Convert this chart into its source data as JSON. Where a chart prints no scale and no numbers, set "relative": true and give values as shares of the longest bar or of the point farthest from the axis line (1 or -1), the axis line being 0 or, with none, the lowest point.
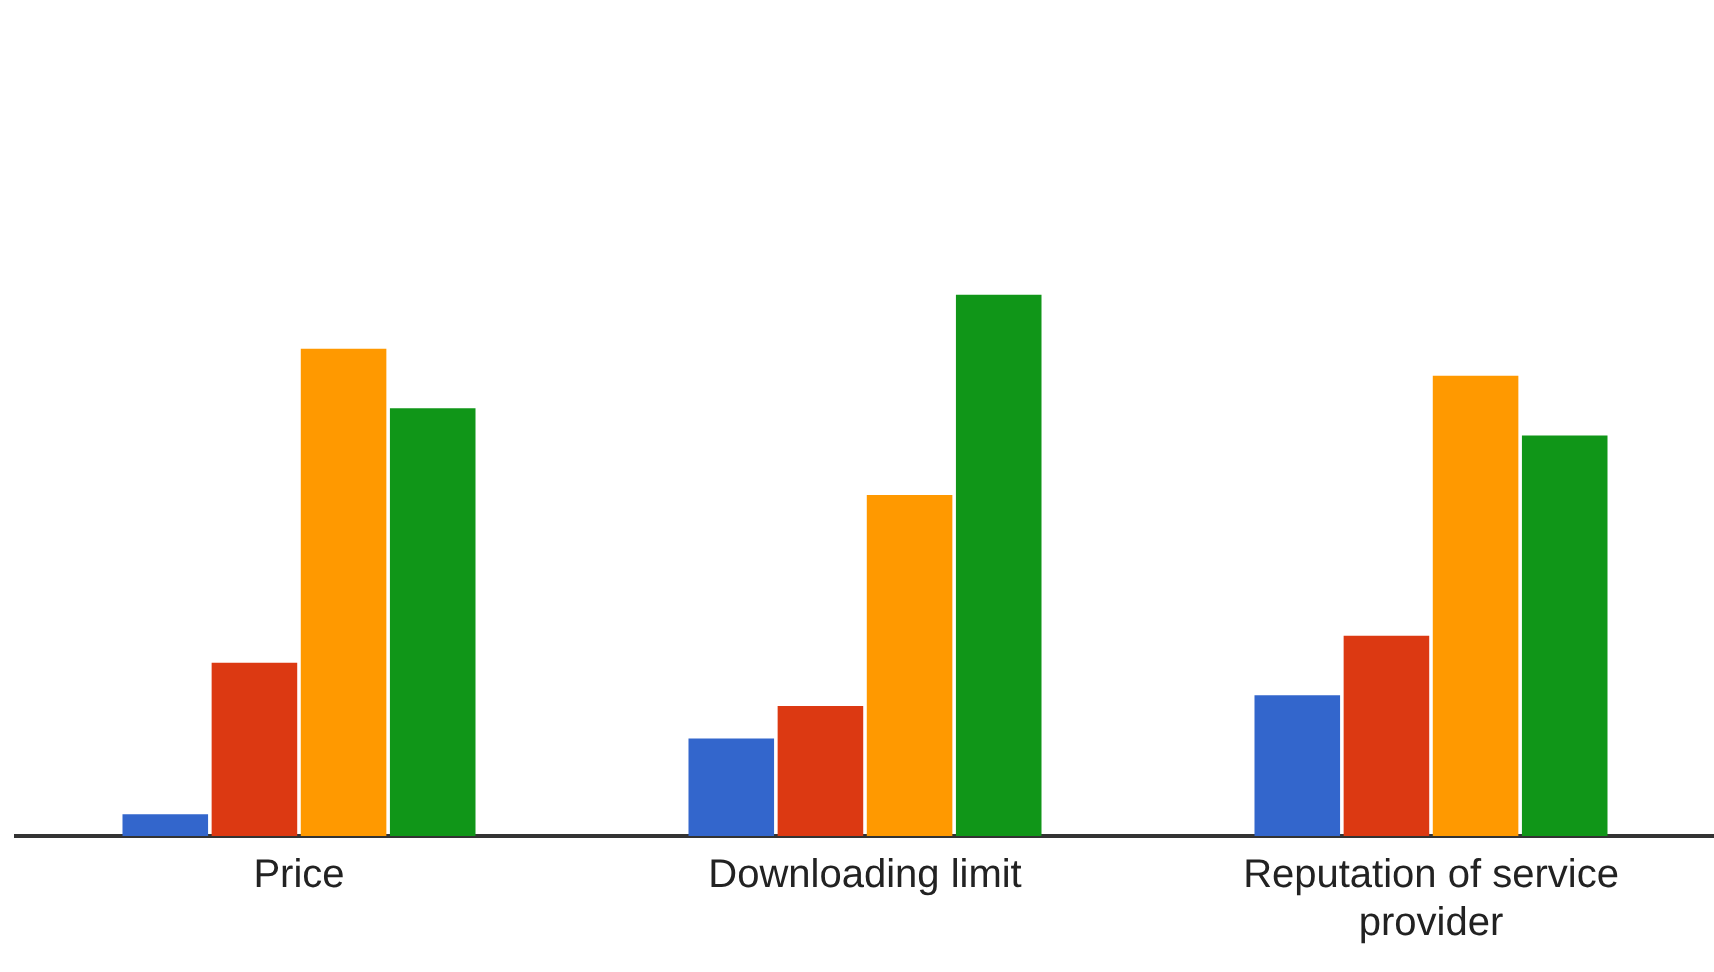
{
  "chart_data": {
    "type": "bar",
    "relative": true,
    "legend": false,
    "categories": [
      "Price",
      "Downloading limit",
      "Reputation of service provider"
    ],
    "series": [
      {
        "color": "#3366cc",
        "values": [
          0.04,
          0.18,
          0.26
        ]
      },
      {
        "color": "#dc3912",
        "values": [
          0.32,
          0.24,
          0.37
        ]
      },
      {
        "color": "#ff9900",
        "values": [
          0.9,
          0.63,
          0.85
        ]
      },
      {
        "color": "#109618",
        "values": [
          0.79,
          1,
          0.74
        ]
      }
    ]
  }
}
